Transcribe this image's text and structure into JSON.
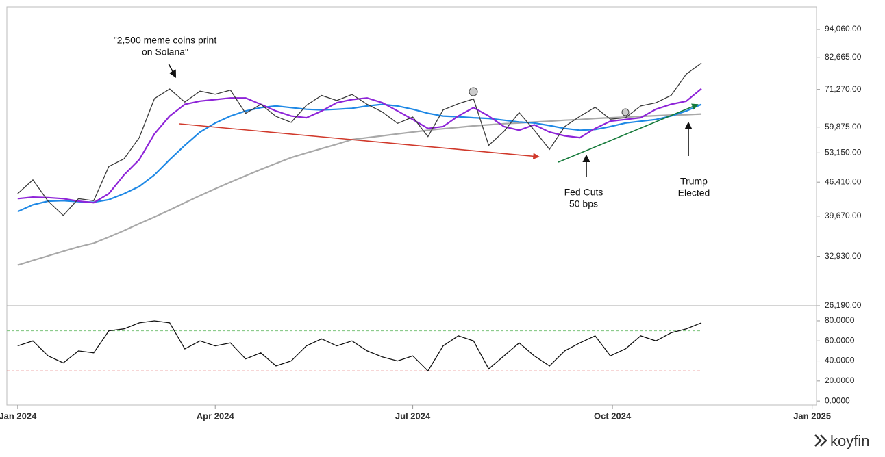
{
  "chart_data": [
    {
      "type": "line",
      "log": true,
      "x": [
        "2024-01-01",
        "2024-01-08",
        "2024-01-15",
        "2024-01-22",
        "2024-01-29",
        "2024-02-05",
        "2024-02-12",
        "2024-02-19",
        "2024-02-26",
        "2024-03-04",
        "2024-03-11",
        "2024-03-18",
        "2024-03-25",
        "2024-04-01",
        "2024-04-08",
        "2024-04-15",
        "2024-04-22",
        "2024-04-29",
        "2024-05-06",
        "2024-05-13",
        "2024-05-20",
        "2024-05-27",
        "2024-06-03",
        "2024-06-10",
        "2024-06-17",
        "2024-06-24",
        "2024-07-01",
        "2024-07-08",
        "2024-07-15",
        "2024-07-22",
        "2024-07-29",
        "2024-08-05",
        "2024-08-12",
        "2024-08-19",
        "2024-08-26",
        "2024-09-02",
        "2024-09-09",
        "2024-09-16",
        "2024-09-23",
        "2024-09-30",
        "2024-10-07",
        "2024-10-14",
        "2024-10-21",
        "2024-10-28",
        "2024-11-04",
        "2024-11-11"
      ],
      "xlim": [
        "2023-12-27",
        "2025-01-03"
      ],
      "series": [
        {
          "color": "#3a3a3a",
          "values": [
            44000,
            46900,
            42500,
            39800,
            43000,
            42600,
            49900,
            51700,
            57000,
            68300,
            71400,
            67200,
            70700,
            69700,
            71000,
            63800,
            66500,
            62900,
            61200,
            66200,
            69300,
            67700,
            69600,
            66500,
            64200,
            60900,
            62700,
            57300,
            64800,
            66700,
            68200,
            55000,
            58700,
            64000,
            59000,
            54000,
            60000,
            62900,
            65600,
            62100,
            62500,
            66000,
            67000,
            69300,
            76500,
            80500
          ]
        },
        {
          "color": "#8e24d8",
          "values": [
            43000,
            43300,
            43200,
            43000,
            42500,
            42200,
            44000,
            48000,
            51500,
            58000,
            63000,
            66500,
            67500,
            68000,
            68500,
            68500,
            66500,
            64500,
            63000,
            62500,
            64500,
            67000,
            68000,
            68500,
            67000,
            64500,
            62000,
            59500,
            60000,
            63000,
            65500,
            63000,
            60000,
            59000,
            60500,
            58500,
            57500,
            57000,
            59500,
            61500,
            62000,
            62500,
            65000,
            66500,
            67500,
            71500
          ]
        },
        {
          "color": "#1e88e5",
          "values": [
            40500,
            41800,
            42500,
            42600,
            42400,
            42300,
            42800,
            44000,
            45500,
            48000,
            51500,
            55000,
            58500,
            61000,
            63000,
            64500,
            65500,
            66000,
            65500,
            65000,
            64800,
            65000,
            65300,
            66000,
            66500,
            66000,
            65000,
            63800,
            63000,
            62800,
            62500,
            62300,
            61800,
            61300,
            61000,
            60300,
            59500,
            59000,
            59200,
            60000,
            61000,
            61500,
            62000,
            63000,
            64500,
            66500
          ]
        },
        {
          "color": "#a8a8a8",
          "values": [
            31600,
            32300,
            33000,
            33700,
            34400,
            35000,
            36000,
            37100,
            38300,
            39500,
            40800,
            42200,
            43600,
            45000,
            46400,
            47800,
            49200,
            50600,
            52000,
            53100,
            54200,
            55300,
            56500,
            57000,
            57500,
            58000,
            58500,
            59000,
            59400,
            59800,
            60200,
            60500,
            60800,
            61000,
            61300,
            61500,
            61800,
            62000,
            62300,
            62500,
            62700,
            62900,
            63100,
            63300,
            63400,
            63600
          ]
        }
      ],
      "ylim": [
        26190,
        104400
      ],
      "yticks": [
        {
          "value": 26190,
          "label": "26,190.00"
        },
        {
          "value": 32930,
          "label": "32,930.00"
        },
        {
          "value": 39670,
          "label": "39,670.00"
        },
        {
          "value": 46410,
          "label": "46,410.00"
        },
        {
          "value": 53150,
          "label": "53,150.00"
        },
        {
          "value": 59875,
          "label": "59,875.00"
        },
        {
          "value": 71270,
          "label": "71,270.00"
        },
        {
          "value": 82665,
          "label": "82,665.00"
        },
        {
          "value": 94060,
          "label": "94,060.00"
        }
      ],
      "annotations": [
        [
          "\"2,500 meme coins print",
          "on Solana\""
        ],
        [
          "Fed Cuts",
          "50 bps"
        ],
        [
          "Trump",
          "Elected"
        ]
      ]
    },
    {
      "type": "line",
      "x": [
        "2024-01-01",
        "2024-01-08",
        "2024-01-15",
        "2024-01-22",
        "2024-01-29",
        "2024-02-05",
        "2024-02-12",
        "2024-02-19",
        "2024-02-26",
        "2024-03-04",
        "2024-03-11",
        "2024-03-18",
        "2024-03-25",
        "2024-04-01",
        "2024-04-08",
        "2024-04-15",
        "2024-04-22",
        "2024-04-29",
        "2024-05-06",
        "2024-05-13",
        "2024-05-20",
        "2024-05-27",
        "2024-06-03",
        "2024-06-10",
        "2024-06-17",
        "2024-06-24",
        "2024-07-01",
        "2024-07-08",
        "2024-07-15",
        "2024-07-22",
        "2024-07-29",
        "2024-08-05",
        "2024-08-12",
        "2024-08-19",
        "2024-08-26",
        "2024-09-02",
        "2024-09-09",
        "2024-09-16",
        "2024-09-23",
        "2024-09-30",
        "2024-10-07",
        "2024-10-14",
        "2024-10-21",
        "2024-10-28",
        "2024-11-04",
        "2024-11-11"
      ],
      "xlim": [
        "2023-12-27",
        "2025-01-03"
      ],
      "xticks": [
        {
          "value": "2024-01-01",
          "label": "Jan 2024"
        },
        {
          "value": "2024-04-01",
          "label": "Apr 2024"
        },
        {
          "value": "2024-07-01",
          "label": "Jul 2024"
        },
        {
          "value": "2024-10-01",
          "label": "Oct 2024"
        },
        {
          "value": "2025-01-01",
          "label": "Jan 2025"
        }
      ],
      "series": [
        {
          "color": "#111111",
          "values": [
            55,
            60,
            45,
            38,
            50,
            48,
            70,
            72,
            78,
            80,
            78,
            52,
            60,
            55,
            58,
            42,
            48,
            35,
            40,
            55,
            62,
            55,
            60,
            50,
            44,
            40,
            45,
            30,
            55,
            65,
            60,
            32,
            45,
            58,
            45,
            35,
            50,
            58,
            65,
            45,
            52,
            65,
            60,
            68,
            72,
            78
          ]
        }
      ],
      "levels": [
        {
          "value": 70,
          "color": "#7cc47c"
        },
        {
          "value": 30,
          "color": "#e05a5a"
        }
      ],
      "ylim": [
        -4,
        95
      ],
      "yticks": [
        {
          "value": 0,
          "label": "0.0000"
        },
        {
          "value": 20,
          "label": "20.0000"
        },
        {
          "value": 40,
          "label": "40.0000"
        },
        {
          "value": 60,
          "label": "60.0000"
        },
        {
          "value": 80,
          "label": "80.0000"
        }
      ]
    }
  ],
  "logo": "koyfin"
}
